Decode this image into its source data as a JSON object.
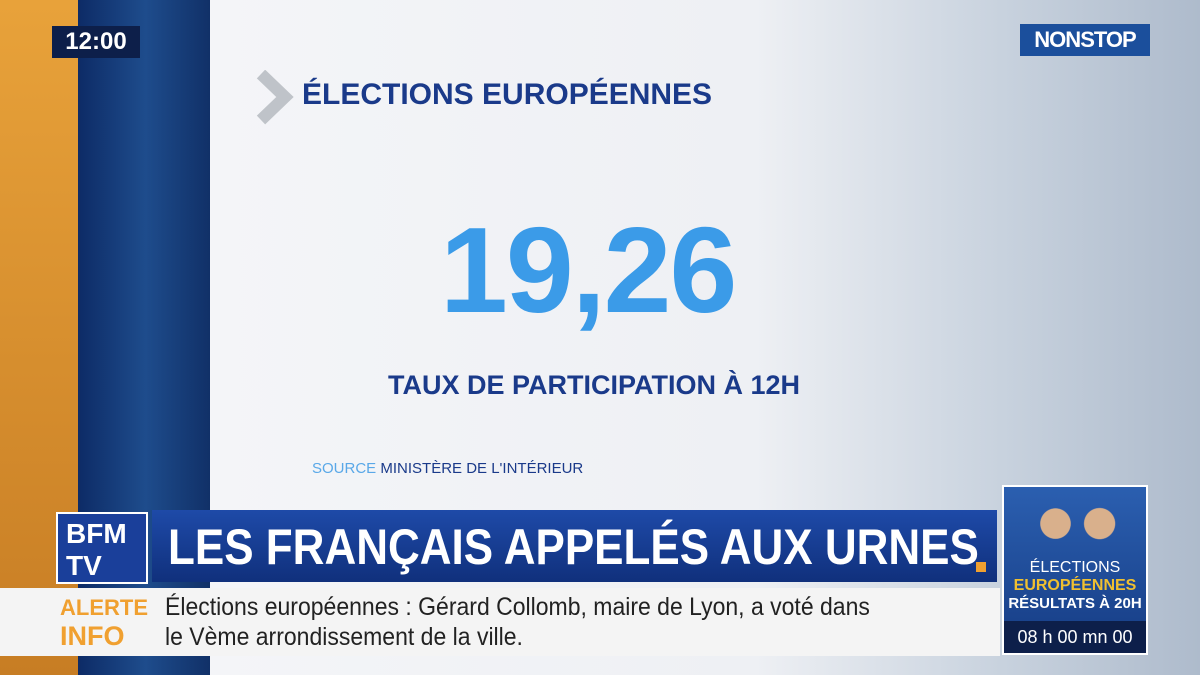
{
  "clock": "12:00",
  "channel_badge": {
    "part1": "NON",
    "part2": "STOP"
  },
  "graphic": {
    "title": "ÉLECTIONS EUROPÉENNES",
    "figure": "19,26",
    "caption": "TAUX DE PARTICIPATION À 12H",
    "source_label": "SOURCE",
    "source": "MINISTÈRE DE L'INTÉRIEUR"
  },
  "logo": {
    "line1": "BFM",
    "line2": "TV"
  },
  "headline": "LES FRANÇAIS APPELÉS AUX URNES",
  "alert": {
    "label1": "ALERTE",
    "label2": "INFO",
    "line1": "Élections européennes : Gérard Collomb, maire de Lyon, a voté dans",
    "line2": "le Vème arrondissement de la ville."
  },
  "promo": {
    "line1": "ÉLECTIONS",
    "line2": "EUROPÉENNES",
    "line3": "RÉSULTATS À 20H",
    "countdown": "08 h 00 mn 00"
  }
}
